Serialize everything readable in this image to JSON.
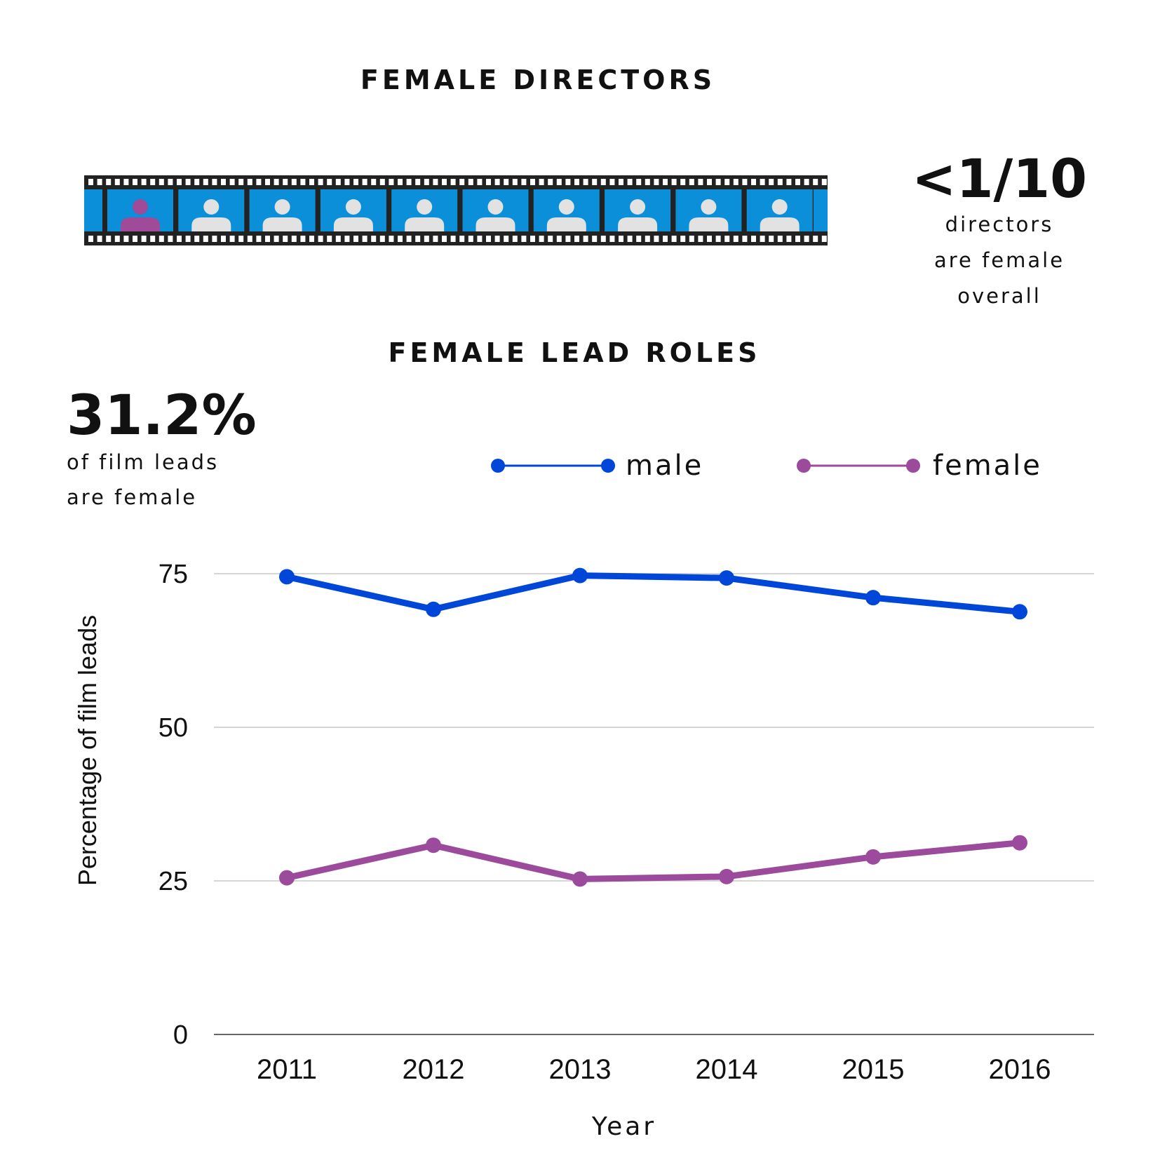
{
  "header": {
    "directors_title": "FEMALE DIRECTORS",
    "leads_title": "FEMALE LEAD ROLES"
  },
  "directors_stat": {
    "value": "<1/10",
    "line1": "directors",
    "line2": "are female",
    "line3": "overall"
  },
  "leads_stat": {
    "value": "31.2%",
    "line1": "of film leads",
    "line2": "are female"
  },
  "filmstrip": {
    "frames": 10,
    "highlighted_index": 0,
    "frame_color": "#0a8fd8",
    "person_color": "#e2e2e2",
    "highlight_color": "#a04a9a",
    "strip_color": "#222222"
  },
  "chart_data": {
    "type": "line",
    "x": [
      "2011",
      "2012",
      "2013",
      "2014",
      "2015",
      "2016"
    ],
    "series": [
      {
        "name": "male",
        "color": "#0047d9",
        "values": [
          74.5,
          69.2,
          74.7,
          74.3,
          71.1,
          68.8
        ]
      },
      {
        "name": "female",
        "color": "#9b4a9c",
        "values": [
          25.5,
          30.8,
          25.3,
          25.7,
          28.9,
          31.2
        ]
      }
    ],
    "xlabel": "Year",
    "ylabel": "Percentage of film leads",
    "ylim": [
      0,
      75
    ],
    "yticks": [
      "0",
      "25",
      "50",
      "75"
    ],
    "grid": true,
    "legend": "top-right"
  }
}
